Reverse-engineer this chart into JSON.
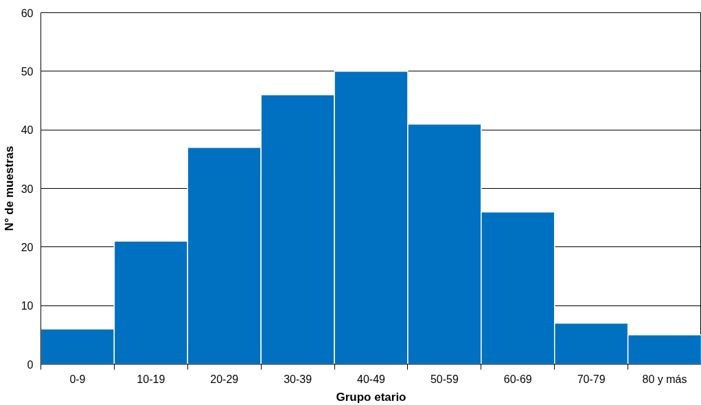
{
  "chart_data": {
    "type": "bar",
    "xlabel": "Grupo etario",
    "ylabel": "N° de muestras",
    "categories": [
      "0-9",
      "10-19",
      "20-29",
      "30-39",
      "40-49",
      "50-59",
      "60-69",
      "70-79",
      "80 y más"
    ],
    "values": [
      6,
      21,
      37,
      46,
      50,
      41,
      26,
      7,
      5
    ],
    "color": "#0070c0",
    "ylim": [
      0,
      60
    ],
    "yticks": [
      0,
      10,
      20,
      30,
      40,
      50,
      60
    ],
    "grid": "y"
  }
}
